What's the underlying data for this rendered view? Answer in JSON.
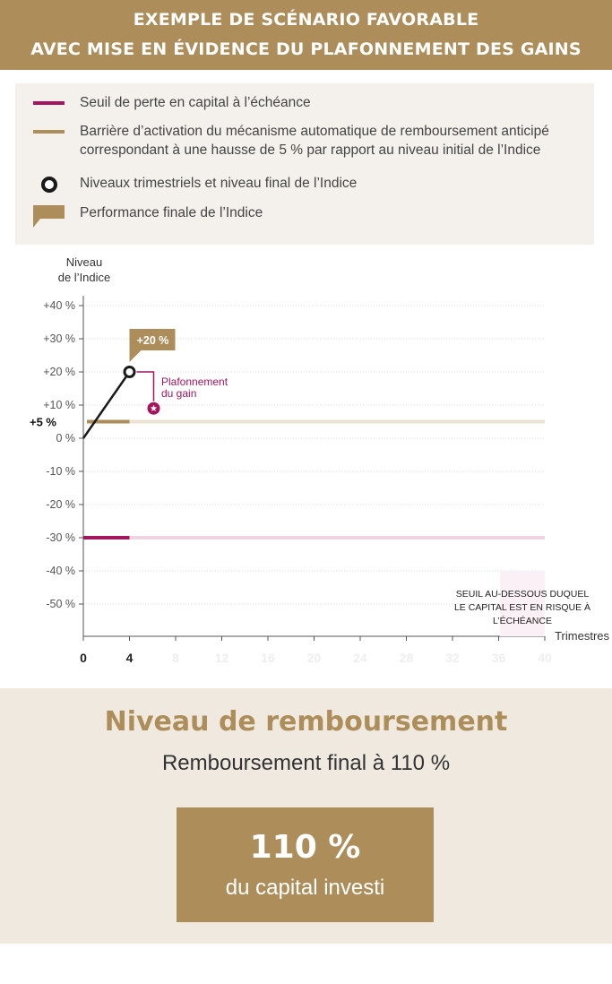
{
  "header": {
    "line1": "EXEMPLE DE SCÉNARIO FAVORABLE",
    "line2": "AVEC MISE EN ÉVIDENCE DU PLAFONNEMENT DES GAINS"
  },
  "legend": {
    "items": [
      {
        "label": "Seuil de perte en capital à l’échéance",
        "color": "#a3155f",
        "icon": "line-swatch"
      },
      {
        "label": "Barrière d’activation du mécanisme automatique de remboursement anticipé correspondant à une hausse de 5 % par rapport au niveau initial de l’Indice",
        "color": "#ad8e5a",
        "icon": "line-swatch"
      },
      {
        "label": "Niveaux trimestriels et niveau final de l’Indice",
        "color": "#1a1a1a",
        "icon": "circle-marker"
      },
      {
        "label": "Performance finale de l’Indice",
        "color": "#ad8e5a",
        "icon": "flag-swatch"
      }
    ]
  },
  "chart_data": {
    "type": "line",
    "ylabel": "Niveau\nde l’Indice",
    "xlabel": "Trimestres",
    "ylim": [
      -60,
      40
    ],
    "xlim": [
      0,
      40
    ],
    "yticks": [
      {
        "value": 40,
        "label": "+40 %"
      },
      {
        "value": 30,
        "label": "+30 %"
      },
      {
        "value": 20,
        "label": "+20 %"
      },
      {
        "value": 10,
        "label": "+10 %"
      },
      {
        "value": 0,
        "label": "0 %"
      },
      {
        "value": -10,
        "label": "-10 %"
      },
      {
        "value": -20,
        "label": "-20 %"
      },
      {
        "value": -30,
        "label": "-30 %"
      },
      {
        "value": -40,
        "label": "-40 %"
      },
      {
        "value": -50,
        "label": "-50 %"
      }
    ],
    "xticks": [
      {
        "value": 0,
        "label": "0",
        "active": true
      },
      {
        "value": 4,
        "label": "4",
        "active": true
      },
      {
        "value": 8,
        "label": "8",
        "active": false
      },
      {
        "value": 12,
        "label": "12",
        "active": false
      },
      {
        "value": 16,
        "label": "16",
        "active": false
      },
      {
        "value": 20,
        "label": "20",
        "active": false
      },
      {
        "value": 24,
        "label": "24",
        "active": false
      },
      {
        "value": 28,
        "label": "28",
        "active": false
      },
      {
        "value": 32,
        "label": "32",
        "active": false
      },
      {
        "value": 36,
        "label": "36",
        "active": false
      },
      {
        "value": 40,
        "label": "40",
        "active": false
      }
    ],
    "series": [
      {
        "name": "Niveaux trimestriels et niveau final de l’Indice",
        "x": [
          0,
          4
        ],
        "values": [
          0,
          20
        ],
        "color": "#1a1a1a"
      }
    ],
    "barrier": {
      "value": 5,
      "label": "+5 %",
      "active_until": 4,
      "color": "#ad8e5a",
      "faded_color": "#ebe2d2"
    },
    "loss_threshold": {
      "value": -30,
      "active_until": 4,
      "color": "#a3155f",
      "faded_color": "#f0d3e1"
    },
    "final_performance": {
      "x": 4,
      "value": 20,
      "label": "+20 %"
    },
    "cap_annotation": {
      "text": "Plafonnement\ndu gain",
      "color": "#a3155f"
    },
    "threshold_note": "SEUIL AU-DESSOUS DUQUEL\nLE CAPITAL EST EN RISQUE À\nL’ÉCHÉANCE",
    "grid": true
  },
  "result": {
    "title": "Niveau de remboursement",
    "subtitle": "Remboursement final à 110 %",
    "value": "110 %",
    "label": "du capital investi"
  }
}
